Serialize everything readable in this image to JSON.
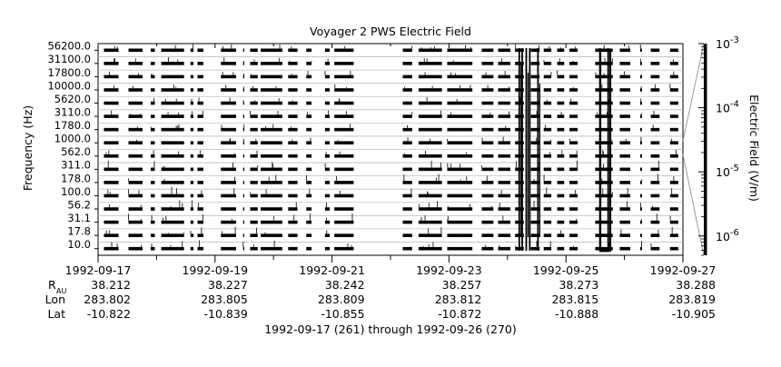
{
  "chart_data": {
    "type": "heatmap",
    "title": "Voyager 2 PWS Electric Field",
    "ylabel": "Frequency (Hz)",
    "colorbar_label": "Electric Field (V/m)",
    "colorbar_scale": "log",
    "colorbar_range": [
      5e-07,
      0.001
    ],
    "colorbar_ticks": [
      {
        "base": "10",
        "exp": "-3",
        "value": 0.001
      },
      {
        "base": "10",
        "exp": "-4",
        "value": 0.0001
      },
      {
        "base": "10",
        "exp": "-5",
        "value": 1e-05
      },
      {
        "base": "10",
        "exp": "-6",
        "value": 1e-06
      }
    ],
    "frequency_channels": [
      "56200.0",
      "31100.0",
      "17800.0",
      "10000.0",
      "5620.0",
      "3110.0",
      "1780.0",
      "1000.0",
      "562.0",
      "311.0",
      "178.0",
      "100.0",
      "56.2",
      "31.1",
      "17.8",
      "10.0"
    ],
    "channel_rows": 16,
    "time_range": [
      "1992-09-17",
      "1992-09-27"
    ],
    "time_ticks": [
      "1992-09-17",
      "1992-09-19",
      "1992-09-21",
      "1992-09-23",
      "1992-09-25",
      "1992-09-27"
    ],
    "ephemeris_labels": {
      "r_main": "R",
      "r_sub": "AU",
      "lon": "Lon",
      "lat": "Lat"
    },
    "ephemeris": [
      {
        "r": "38.212",
        "lon": "283.802",
        "lat": "-10.822"
      },
      {
        "r": "38.227",
        "lon": "283.805",
        "lat": "-10.839"
      },
      {
        "r": "38.242",
        "lon": "283.809",
        "lat": "-10.855"
      },
      {
        "r": "38.257",
        "lon": "283.812",
        "lat": "-10.872"
      },
      {
        "r": "38.273",
        "lon": "283.815",
        "lat": "-10.888"
      },
      {
        "r": "38.288",
        "lon": "283.819",
        "lat": "-10.905"
      }
    ],
    "date_range_label": "1992-09-17 (261) through 1992-09-26 (270)",
    "data_color": "#000000",
    "grid": true,
    "data_segments_days": [
      [
        0.1,
        0.35
      ],
      [
        0.52,
        0.76
      ],
      [
        0.9,
        0.97
      ],
      [
        1.08,
        1.47
      ],
      [
        1.58,
        1.63
      ],
      [
        1.7,
        1.8
      ],
      [
        2.1,
        2.36
      ],
      [
        2.48,
        2.5
      ],
      [
        2.6,
        2.73
      ],
      [
        2.78,
        3.15
      ],
      [
        3.25,
        3.41
      ],
      [
        3.56,
        3.65
      ],
      [
        3.88,
        3.96
      ],
      [
        4.04,
        4.37
      ],
      [
        5.21,
        5.37
      ],
      [
        5.48,
        5.88
      ],
      [
        5.97,
        6.4
      ],
      [
        6.56,
        6.76
      ],
      [
        6.84,
        7.05
      ],
      [
        7.13,
        7.28
      ],
      [
        7.4,
        7.55
      ],
      [
        7.62,
        7.75
      ],
      [
        7.85,
        7.97
      ],
      [
        8.06,
        8.2
      ],
      [
        8.5,
        8.8
      ],
      [
        8.92,
        9.1
      ],
      [
        9.27,
        9.3
      ],
      [
        9.45,
        9.6
      ],
      [
        9.78,
        9.92
      ]
    ],
    "intense_bursts_days": [
      7.2,
      7.25,
      7.32,
      7.38,
      7.52,
      8.58,
      8.72
    ],
    "burst_band_days": [
      8.57,
      8.74
    ]
  }
}
